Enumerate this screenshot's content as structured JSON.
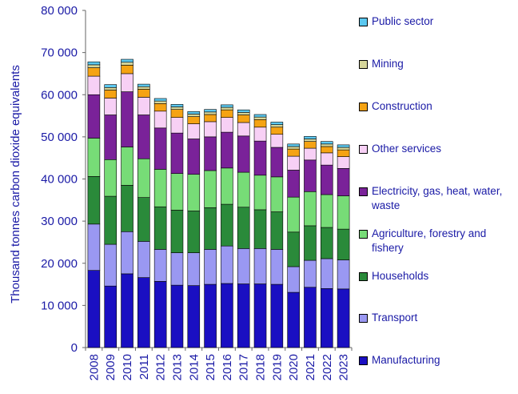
{
  "chart_data": {
    "type": "stacked-bar",
    "title": "",
    "xlabel": "",
    "ylabel": "Thousand tonnes carbon dioxide equivalents",
    "ylim": [
      0,
      80000
    ],
    "yticks": [
      "0",
      "10 000",
      "20 000",
      "30 000",
      "40 000",
      "50 000",
      "60 000",
      "70 000",
      "80 000"
    ],
    "ytick_values": [
      0,
      10000,
      20000,
      30000,
      40000,
      50000,
      60000,
      70000,
      80000
    ],
    "categories": [
      "2008",
      "2009",
      "2010",
      "2011",
      "2012",
      "2013",
      "2014",
      "2015",
      "2016",
      "2017",
      "2018",
      "2019",
      "2020",
      "2021",
      "2022",
      "2023"
    ],
    "series": [
      {
        "name": "Manufacturing",
        "color": "#1a0fc2",
        "values": [
          18300,
          14600,
          17500,
          16600,
          15700,
          14800,
          14700,
          15000,
          15200,
          15100,
          15100,
          15000,
          13100,
          14300,
          14000,
          13900
        ]
      },
      {
        "name": "Transport",
        "color": "#9a98f2",
        "values": [
          11000,
          9900,
          10000,
          8600,
          7600,
          7700,
          7800,
          8300,
          8900,
          8400,
          8400,
          8300,
          6100,
          6400,
          7100,
          6900
        ]
      },
      {
        "name": "Households",
        "color": "#2a8a3a",
        "values": [
          11300,
          11400,
          11000,
          10400,
          10100,
          10100,
          9900,
          9900,
          9900,
          9800,
          9200,
          8900,
          8200,
          8200,
          7400,
          7300
        ]
      },
      {
        "name": "Agriculture, forestry and fishery",
        "color": "#77dc77",
        "values": [
          9100,
          8700,
          9100,
          9200,
          8900,
          8700,
          8700,
          8800,
          8600,
          8300,
          8200,
          8300,
          8300,
          8100,
          7800,
          7900
        ]
      },
      {
        "name": "Electricity, gas, heat, water, waste",
        "color": "#7a2299",
        "values": [
          10300,
          10600,
          13100,
          10400,
          9800,
          9600,
          8400,
          8000,
          8500,
          8600,
          8100,
          7000,
          6400,
          7500,
          7000,
          6500
        ]
      },
      {
        "name": "Other services",
        "color": "#f7d0f5",
        "values": [
          4400,
          4000,
          4300,
          4200,
          4000,
          3700,
          3600,
          3600,
          3500,
          3200,
          3300,
          3100,
          3300,
          2800,
          2900,
          2800
        ]
      },
      {
        "name": "Construction",
        "color": "#f5a313",
        "values": [
          2000,
          1900,
          2000,
          1900,
          1800,
          1900,
          1700,
          1700,
          1800,
          1800,
          1800,
          1700,
          1700,
          1600,
          1500,
          1600
        ]
      },
      {
        "name": "Mining",
        "color": "#d6d69a",
        "values": [
          700,
          600,
          700,
          600,
          600,
          600,
          600,
          600,
          600,
          600,
          600,
          600,
          600,
          600,
          600,
          600
        ]
      },
      {
        "name": "Public sector",
        "color": "#5bc8f0",
        "values": [
          700,
          700,
          700,
          600,
          600,
          600,
          600,
          600,
          600,
          600,
          600,
          600,
          600,
          600,
          600,
          600
        ]
      }
    ],
    "legend_order": [
      "Public sector",
      "Mining",
      "Construction",
      "Other services",
      "Electricity, gas, heat, water, waste",
      "Agriculture, forestry and fishery",
      "Households",
      "Transport",
      "Manufacturing"
    ],
    "legend_position": "right"
  }
}
